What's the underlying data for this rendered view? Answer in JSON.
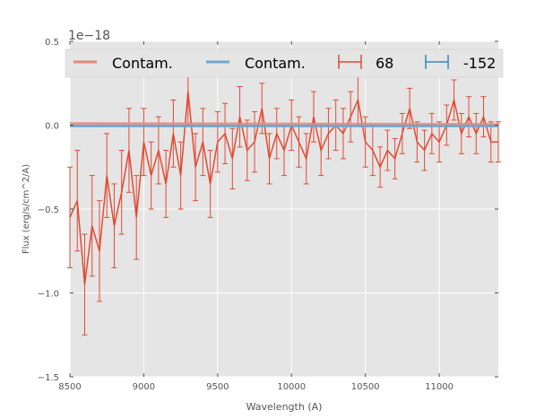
{
  "chart_data": {
    "type": "line",
    "title": "",
    "offset_label": "1e−18",
    "xlabel": "Wavelength (A)",
    "ylabel": "Flux (erg/s/cm^2/A)",
    "xlim": [
      8500,
      11400
    ],
    "ylim": [
      -1.5,
      0.5
    ],
    "xticks": [
      8500,
      9000,
      9500,
      10000,
      10500,
      11000
    ],
    "xtick_labels": [
      "8500",
      "9000",
      "9500",
      "10000",
      "10500",
      "11000"
    ],
    "yticks": [
      0.5,
      0.0,
      -0.5,
      -1.0,
      -1.5
    ],
    "ytick_labels": [
      "0.5",
      "0.0",
      "−0.5",
      "−1.0",
      "−1.5"
    ],
    "grid": true,
    "legend_position": "top",
    "legend": [
      "Contam.",
      "Contam.",
      "68",
      "-152"
    ],
    "series": [
      {
        "name": "Contam.",
        "kind": "line",
        "color": "#e8877a",
        "x": [
          8500,
          11400
        ],
        "y": [
          0.01,
          0.005
        ]
      },
      {
        "name": "Contam.",
        "kind": "line",
        "color": "#6fa8d0",
        "x": [
          8500,
          11400
        ],
        "y": [
          -0.005,
          -0.005
        ]
      },
      {
        "name": "68",
        "kind": "errorbar",
        "color": "#e24a33",
        "x": [
          8500,
          8550,
          8600,
          8650,
          8700,
          8750,
          8800,
          8850,
          8900,
          8950,
          9000,
          9050,
          9100,
          9150,
          9200,
          9250,
          9300,
          9350,
          9400,
          9450,
          9500,
          9550,
          9600,
          9650,
          9700,
          9750,
          9800,
          9850,
          9900,
          9950,
          10000,
          10050,
          10100,
          10150,
          10200,
          10250,
          10300,
          10350,
          10400,
          10450,
          10500,
          10550,
          10600,
          10650,
          10700,
          10750,
          10800,
          10850,
          10900,
          10950,
          11000,
          11050,
          11100,
          11150,
          11200,
          11250,
          11300,
          11350,
          11400
        ],
        "y": [
          -0.55,
          -0.45,
          -0.95,
          -0.6,
          -0.75,
          -0.3,
          -0.6,
          -0.4,
          -0.15,
          -0.55,
          -0.1,
          -0.3,
          -0.15,
          -0.35,
          -0.05,
          -0.3,
          0.2,
          -0.25,
          -0.1,
          -0.35,
          -0.1,
          -0.05,
          -0.2,
          0.05,
          -0.15,
          -0.1,
          0.1,
          -0.2,
          -0.05,
          -0.15,
          0.0,
          -0.1,
          -0.2,
          0.05,
          -0.15,
          -0.05,
          0.0,
          -0.05,
          0.05,
          0.15,
          -0.1,
          -0.15,
          -0.25,
          -0.15,
          -0.2,
          -0.05,
          0.1,
          -0.1,
          -0.15,
          -0.05,
          -0.1,
          0.0,
          0.15,
          -0.05,
          0.05,
          -0.05,
          0.05,
          -0.1,
          -0.1
        ],
        "yerr": [
          0.3,
          0.3,
          0.3,
          0.3,
          0.3,
          0.25,
          0.25,
          0.25,
          0.25,
          0.25,
          0.2,
          0.2,
          0.2,
          0.2,
          0.2,
          0.2,
          0.2,
          0.2,
          0.2,
          0.2,
          0.18,
          0.18,
          0.18,
          0.18,
          0.18,
          0.18,
          0.15,
          0.15,
          0.15,
          0.15,
          0.15,
          0.15,
          0.15,
          0.15,
          0.15,
          0.15,
          0.15,
          0.15,
          0.15,
          0.15,
          0.15,
          0.15,
          0.12,
          0.12,
          0.12,
          0.12,
          0.12,
          0.12,
          0.12,
          0.12,
          0.12,
          0.12,
          0.12,
          0.12,
          0.12,
          0.12,
          0.12,
          0.12,
          0.12
        ]
      },
      {
        "name": "-152",
        "kind": "errorbar",
        "color": "#348abd",
        "x": [
          8500,
          11400
        ],
        "y": [
          -0.005,
          -0.005
        ],
        "yerr": [
          0,
          0
        ]
      }
    ]
  }
}
